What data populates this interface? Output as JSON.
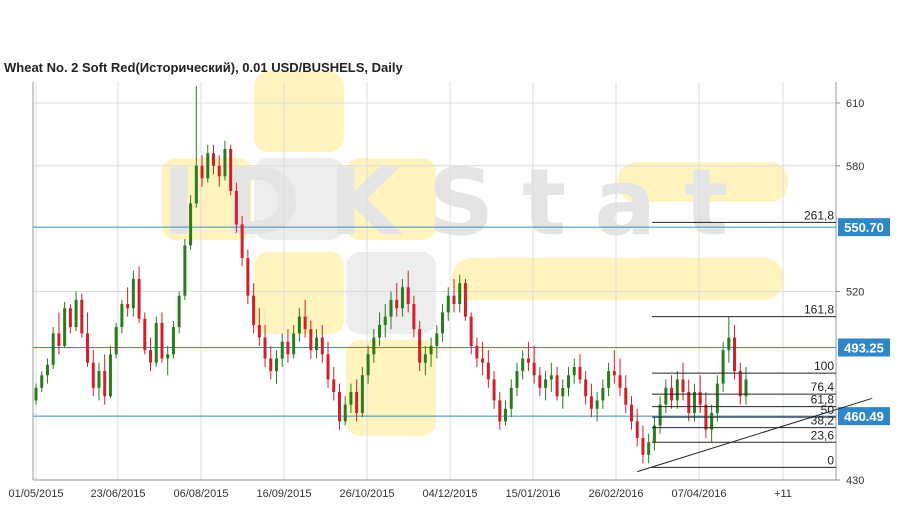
{
  "title": "Wheat  No. 2 Soft Red(Исторический), 0.01 USD/BUSHELS, Daily",
  "watermark": "IDKStat",
  "colors": {
    "up": "#2a7a1e",
    "down": "#d0202a",
    "level_line": "#3a8fc0",
    "level_label_bg": "#2f87c8",
    "grid": "#dcdcdc",
    "watermark_yellow": "#fff2b8",
    "watermark_gray": "#ececec",
    "fib": "#222222"
  },
  "chart_data": {
    "type": "candlestick",
    "y_range": [
      430,
      620
    ],
    "y_ticks": [
      430,
      520,
      580,
      610
    ],
    "x_tick_labels": [
      "01/05/2015",
      "23/06/2015",
      "06/08/2015",
      "16/09/2015",
      "26/10/2015",
      "04/12/2015",
      "15/01/2016",
      "26/02/2016",
      "07/04/2016",
      "+11"
    ],
    "level_lines": [
      {
        "value": 550.7,
        "label": "550.70"
      },
      {
        "value": 493.25,
        "label": "493.25"
      },
      {
        "value": 460.49,
        "label": "460.49"
      }
    ],
    "fibonacci": [
      {
        "label": "261,8",
        "value": 553
      },
      {
        "label": "161,8",
        "value": 508
      },
      {
        "label": "100",
        "value": 481
      },
      {
        "label": "76,4",
        "value": 471
      },
      {
        "label": "61,8",
        "value": 465
      },
      {
        "label": "50",
        "value": 460
      },
      {
        "label": "38,2",
        "value": 455
      },
      {
        "label": "23,6",
        "value": 448
      },
      {
        "label": "0",
        "value": 436
      }
    ],
    "trendline": {
      "from": [
        2016.16,
        434
      ],
      "to": [
        2016.36,
        463
      ]
    },
    "candles": [
      [
        468,
        476,
        466,
        474
      ],
      [
        474,
        482,
        472,
        480
      ],
      [
        480,
        488,
        476,
        485
      ],
      [
        485,
        503,
        483,
        500
      ],
      [
        500,
        510,
        490,
        494
      ],
      [
        494,
        515,
        493,
        512
      ],
      [
        512,
        514,
        500,
        503
      ],
      [
        503,
        520,
        501,
        516
      ],
      [
        516,
        519,
        498,
        500
      ],
      [
        500,
        510,
        484,
        486
      ],
      [
        486,
        492,
        470,
        474
      ],
      [
        474,
        486,
        468,
        482
      ],
      [
        482,
        490,
        466,
        470
      ],
      [
        470,
        494,
        469,
        490
      ],
      [
        490,
        505,
        488,
        503
      ],
      [
        503,
        516,
        500,
        514
      ],
      [
        514,
        522,
        508,
        512
      ],
      [
        512,
        530,
        508,
        526
      ],
      [
        526,
        532,
        505,
        507
      ],
      [
        507,
        510,
        490,
        492
      ],
      [
        492,
        498,
        482,
        486
      ],
      [
        486,
        508,
        484,
        505
      ],
      [
        505,
        510,
        486,
        488
      ],
      [
        488,
        494,
        480,
        490
      ],
      [
        490,
        506,
        488,
        503
      ],
      [
        503,
        520,
        500,
        518
      ],
      [
        518,
        545,
        516,
        542
      ],
      [
        542,
        566,
        540,
        562
      ],
      [
        562,
        618,
        560,
        580
      ],
      [
        580,
        585,
        570,
        574
      ],
      [
        574,
        590,
        572,
        586
      ],
      [
        586,
        590,
        576,
        580
      ],
      [
        580,
        585,
        570,
        575
      ],
      [
        575,
        592,
        573,
        588
      ],
      [
        588,
        590,
        566,
        568
      ],
      [
        568,
        572,
        548,
        552
      ],
      [
        552,
        556,
        532,
        536
      ],
      [
        536,
        540,
        514,
        518
      ],
      [
        518,
        524,
        500,
        504
      ],
      [
        504,
        512,
        494,
        498
      ],
      [
        498,
        504,
        484,
        488
      ],
      [
        488,
        494,
        478,
        482
      ],
      [
        482,
        492,
        476,
        488
      ],
      [
        488,
        500,
        484,
        496
      ],
      [
        496,
        502,
        486,
        490
      ],
      [
        490,
        504,
        488,
        500
      ],
      [
        500,
        512,
        496,
        508
      ],
      [
        508,
        516,
        498,
        502
      ],
      [
        502,
        506,
        488,
        492
      ],
      [
        492,
        502,
        488,
        498
      ],
      [
        498,
        504,
        486,
        490
      ],
      [
        490,
        496,
        474,
        478
      ],
      [
        478,
        484,
        468,
        472
      ],
      [
        472,
        476,
        454,
        458
      ],
      [
        458,
        470,
        456,
        466
      ],
      [
        466,
        476,
        462,
        472
      ],
      [
        472,
        478,
        458,
        462
      ],
      [
        462,
        484,
        460,
        480
      ],
      [
        480,
        494,
        476,
        490
      ],
      [
        490,
        502,
        486,
        498
      ],
      [
        498,
        510,
        494,
        504
      ],
      [
        504,
        514,
        498,
        508
      ],
      [
        508,
        520,
        502,
        516
      ],
      [
        516,
        524,
        508,
        512
      ],
      [
        512,
        526,
        508,
        522
      ],
      [
        522,
        530,
        510,
        514
      ],
      [
        514,
        518,
        498,
        502
      ],
      [
        502,
        506,
        482,
        486
      ],
      [
        486,
        494,
        480,
        490
      ],
      [
        490,
        498,
        484,
        494
      ],
      [
        494,
        504,
        488,
        500
      ],
      [
        500,
        514,
        496,
        510
      ],
      [
        510,
        522,
        506,
        518
      ],
      [
        518,
        526,
        510,
        514
      ],
      [
        514,
        528,
        510,
        524
      ],
      [
        524,
        526,
        506,
        508
      ],
      [
        508,
        510,
        490,
        494
      ],
      [
        494,
        498,
        484,
        488
      ],
      [
        488,
        496,
        480,
        486
      ],
      [
        486,
        492,
        474,
        478
      ],
      [
        478,
        482,
        464,
        468
      ],
      [
        468,
        472,
        454,
        458
      ],
      [
        458,
        468,
        456,
        464
      ],
      [
        464,
        478,
        460,
        474
      ],
      [
        474,
        486,
        470,
        482
      ],
      [
        482,
        492,
        478,
        488
      ],
      [
        488,
        496,
        482,
        486
      ],
      [
        486,
        494,
        476,
        480
      ],
      [
        480,
        484,
        470,
        474
      ],
      [
        474,
        482,
        468,
        478
      ],
      [
        478,
        486,
        472,
        480
      ],
      [
        480,
        484,
        468,
        470
      ],
      [
        470,
        478,
        464,
        474
      ],
      [
        474,
        484,
        470,
        480
      ],
      [
        480,
        488,
        476,
        484
      ],
      [
        484,
        490,
        476,
        478
      ],
      [
        478,
        482,
        466,
        470
      ],
      [
        470,
        476,
        460,
        464
      ],
      [
        464,
        472,
        458,
        468
      ],
      [
        468,
        478,
        464,
        474
      ],
      [
        474,
        486,
        470,
        482
      ],
      [
        482,
        492,
        476,
        480
      ],
      [
        480,
        488,
        470,
        474
      ],
      [
        474,
        480,
        462,
        466
      ],
      [
        466,
        470,
        454,
        458
      ],
      [
        458,
        464,
        446,
        450
      ],
      [
        450,
        456,
        438,
        442
      ],
      [
        442,
        452,
        438,
        448
      ],
      [
        448,
        460,
        444,
        456
      ],
      [
        456,
        470,
        452,
        466
      ],
      [
        466,
        478,
        462,
        474
      ],
      [
        474,
        480,
        464,
        468
      ],
      [
        468,
        482,
        464,
        478
      ],
      [
        478,
        486,
        468,
        472
      ],
      [
        472,
        478,
        458,
        462
      ],
      [
        462,
        476,
        458,
        472
      ],
      [
        472,
        480,
        462,
        466
      ],
      [
        466,
        472,
        450,
        454
      ],
      [
        454,
        466,
        448,
        462
      ],
      [
        462,
        480,
        458,
        476
      ],
      [
        476,
        496,
        472,
        492
      ],
      [
        492,
        508,
        486,
        498
      ],
      [
        498,
        504,
        478,
        482
      ],
      [
        482,
        486,
        466,
        470
      ],
      [
        470,
        484,
        466,
        478
      ]
    ]
  }
}
